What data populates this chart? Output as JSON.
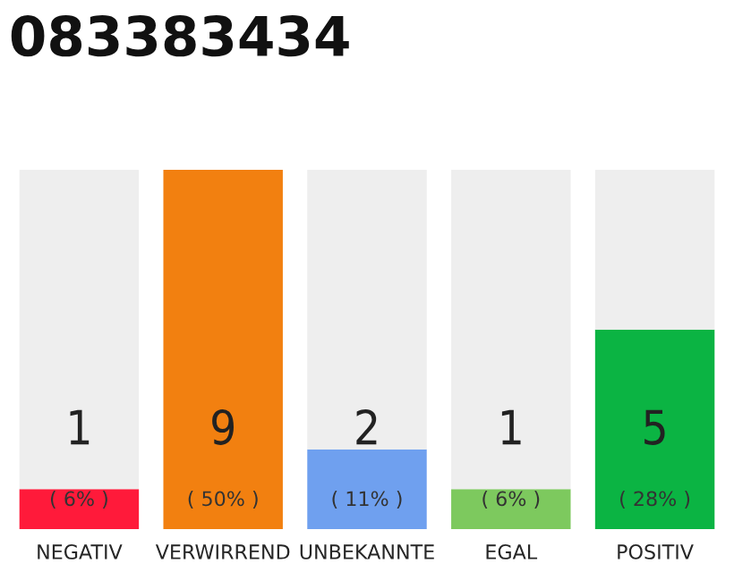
{
  "chart_data": {
    "type": "bar",
    "title": "083383434",
    "categories": [
      "NEGATIV",
      "VERWIRREND",
      "UNBEKANNTE",
      "EGAL",
      "POSITIV"
    ],
    "stacked": true,
    "tick_labels": "x",
    "series": [
      {
        "colors": [
          "#ff1a3a",
          "#f28010",
          "#6fa0ef",
          "#7dc95e",
          "#0bb443"
        ],
        "values": [
          1,
          9,
          2,
          1,
          5
        ],
        "value_labels": [
          "1",
          "9",
          "2",
          "1",
          "5"
        ]
      },
      {
        "color": "#eeeeee",
        "values": [
          8,
          0,
          7,
          8,
          4
        ]
      }
    ],
    "annotations": [
      "( 6% )",
      "( 50% )",
      "( 11% )",
      "( 6% )",
      "( 28% )"
    ]
  }
}
